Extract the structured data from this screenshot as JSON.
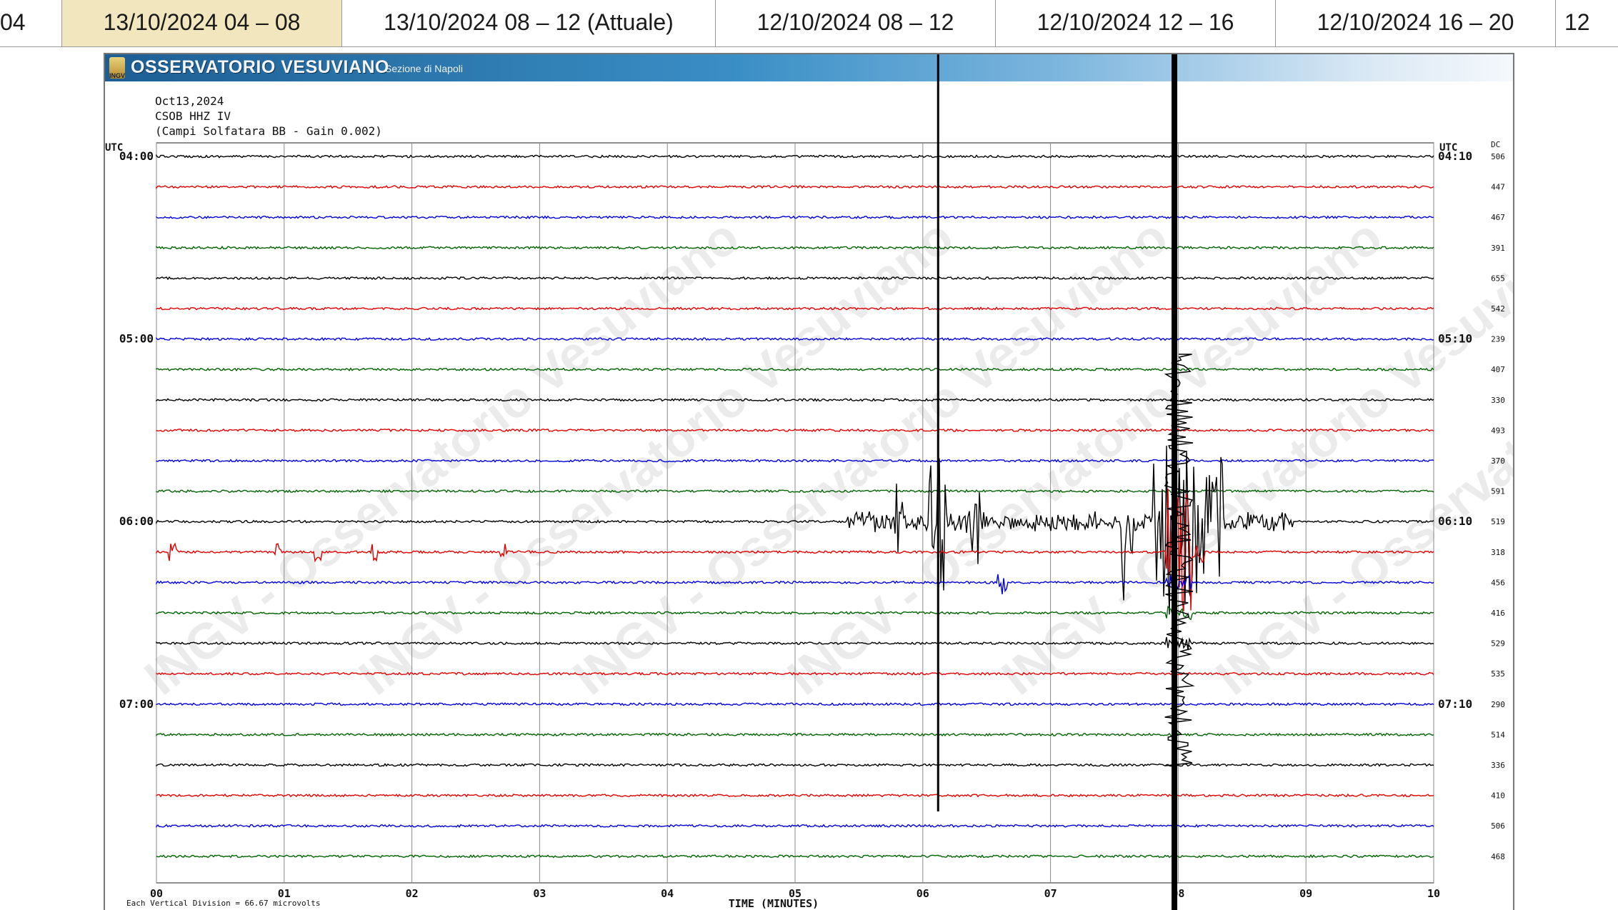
{
  "tabs": [
    {
      "label": "04",
      "active": false
    },
    {
      "label": "13/10/2024 04 – 08",
      "active": true
    },
    {
      "label": "13/10/2024 08 – 12 (Attuale)",
      "active": false
    },
    {
      "label": "12/10/2024 08 – 12",
      "active": false
    },
    {
      "label": "12/10/2024 12 – 16",
      "active": false
    },
    {
      "label": "12/10/2024 16 – 20",
      "active": false
    },
    {
      "label": "12",
      "active": false
    }
  ],
  "header": {
    "institution": "OSSERVATORIO VESUVIANO",
    "logo_text": "INGV",
    "section": "Sezione di Napoli",
    "date": "Oct13,2024",
    "station": "CSOB HHZ IV",
    "site": "(Campi Solfatara BB - Gain 0.002)"
  },
  "seismogram": {
    "left_axis_label": "UTC",
    "right_axis_label": "UTC",
    "dc_label": "DC",
    "left_times": [
      "04:00",
      "05:00",
      "06:00",
      "07:00"
    ],
    "right_times": [
      "04:10",
      "05:10",
      "06:10",
      "07:10"
    ],
    "dc_values": [
      "506",
      "447",
      "467",
      "391",
      "655",
      "542",
      "239",
      "407",
      "330",
      "493",
      "370",
      "591",
      "519",
      "318",
      "456",
      "416",
      "529",
      "535",
      "290",
      "514",
      "336",
      "410",
      "506",
      "468"
    ],
    "minute_ticks": [
      "00",
      "01",
      "02",
      "03",
      "04",
      "05",
      "06",
      "07",
      "08",
      "09",
      "10"
    ],
    "x_axis_label": "TIME (MINUTES)",
    "footer_note": "Each Vertical Division = 66.67 microvolts",
    "trace_colors": [
      "#000000",
      "#e00000",
      "#0000d8",
      "#006400"
    ],
    "watermark": "INGV - Osservatorio Vesuviano"
  }
}
